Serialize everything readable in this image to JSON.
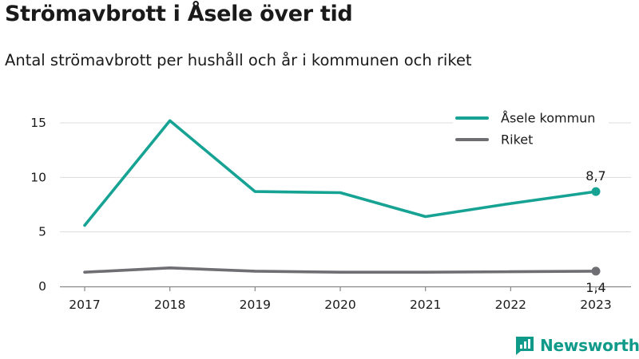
{
  "title": "Strömavbrott i Åsele över tid",
  "subtitle": "Antal strömavbrott per hushåll och år i kommunen och riket",
  "brand": {
    "name": "Newsworthy",
    "icon": "newsworthy-logo-icon"
  },
  "chart_data": {
    "type": "line",
    "x": [
      "2017",
      "2018",
      "2019",
      "2020",
      "2021",
      "2022",
      "2023"
    ],
    "ylim": [
      0,
      17
    ],
    "yticks": [
      "0",
      "5",
      "10",
      "15"
    ],
    "ytick_values": [
      0,
      5,
      10,
      15
    ],
    "grid": true,
    "legend_position": "top-right",
    "series": [
      {
        "name": "Åsele kommun",
        "color": "#16a394",
        "values": [
          5.6,
          15.2,
          8.7,
          8.6,
          6.4,
          7.6,
          8.7
        ],
        "end_label": "8,7"
      },
      {
        "name": "Riket",
        "color": "#6e6e73",
        "values": [
          1.3,
          1.7,
          1.4,
          1.3,
          1.3,
          1.35,
          1.4
        ],
        "end_label": "1,4"
      }
    ]
  }
}
